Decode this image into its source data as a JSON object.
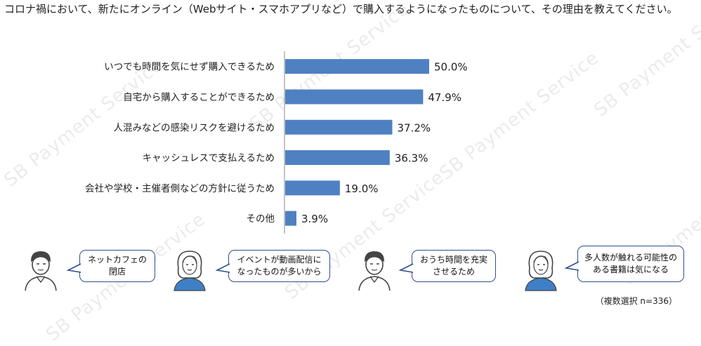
{
  "title": "コロナ禍において、新たにオンライン（Webサイト・スマホアプリなど）で購入するようになったものについて、その理由を教えてください。",
  "watermark": "SB Payment Service",
  "chart_data": {
    "type": "bar",
    "orientation": "horizontal",
    "categories": [
      "いつでも時間を気にせず購入できるため",
      "自宅から購入することができるため",
      "人混みなどの感染リスクを避けるため",
      "キャッシュレスで支払えるため",
      "会社や学校・主催者側などの方針に従うため",
      "その他"
    ],
    "values": [
      50.0,
      47.9,
      37.2,
      36.3,
      19.0,
      3.9
    ],
    "value_labels": [
      "50.0%",
      "47.9%",
      "37.2%",
      "36.3%",
      "19.0%",
      "3.9%"
    ],
    "xlim": [
      0,
      50
    ],
    "bar_color": "#4f81c2",
    "grid": false,
    "legend": "none"
  },
  "comments": [
    "ネットカフェの閉店",
    "イベントが動画配信に\nなったものが多いから",
    "おうち時間を充実\nさせるため",
    "多人数が触れる可能性の\nある書籍は気になる"
  ],
  "note": "（複数選択 n=336）",
  "colors": {
    "bubble_border": "#2f4f8f",
    "avatar_fill": "#3f7fc6",
    "avatar_line": "#444444"
  }
}
